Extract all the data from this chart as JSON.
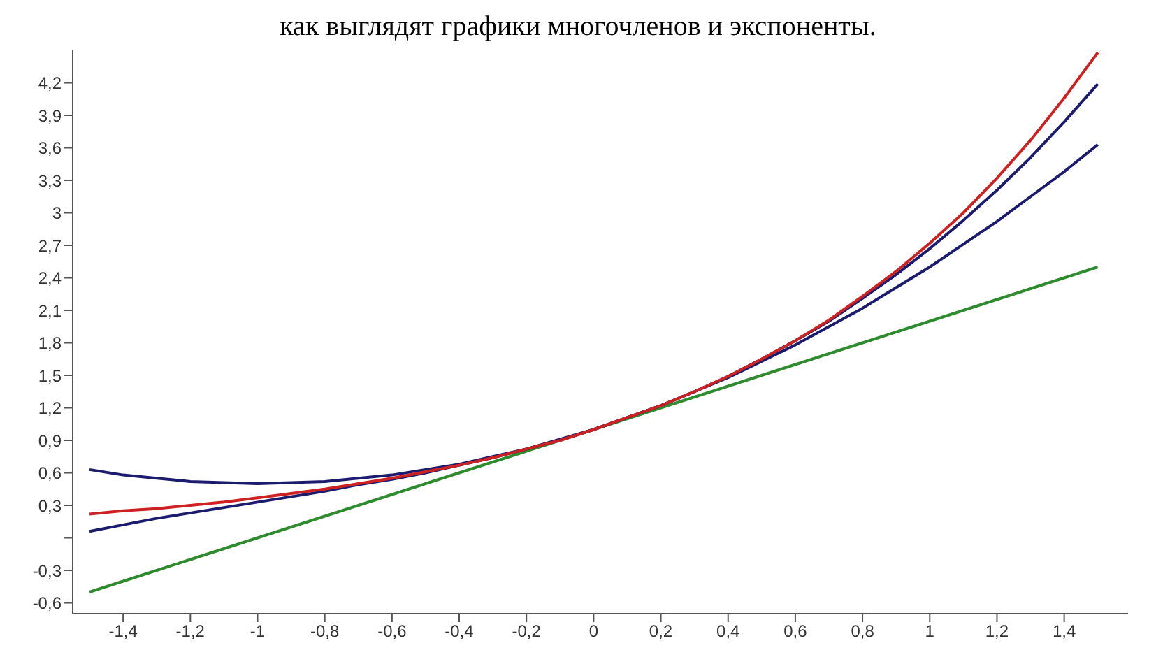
{
  "chart_data": {
    "type": "line",
    "title": "как выглядят графики многочленов и экспоненты.",
    "x": [
      -1.5,
      -1.4,
      -1.3,
      -1.2,
      -1.1,
      -1,
      -0.9,
      -0.8,
      -0.7,
      -0.6,
      -0.5,
      -0.4,
      -0.3,
      -0.2,
      -0.1,
      0,
      0.1,
      0.2,
      0.3,
      0.4,
      0.5,
      0.6,
      0.7,
      0.8,
      0.9,
      1,
      1.1,
      1.2,
      1.3,
      1.4,
      1.5
    ],
    "series": [
      {
        "color": "#2e8b2e",
        "values": [
          -0.5,
          -0.4,
          -0.3,
          -0.2,
          -0.1,
          0,
          0.1,
          0.2,
          0.3,
          0.4,
          0.5,
          0.6,
          0.7,
          0.8,
          0.9,
          1,
          1.1,
          1.2,
          1.3,
          1.4,
          1.5,
          1.6,
          1.7,
          1.8,
          1.9,
          2,
          2.1,
          2.2,
          2.3,
          2.4,
          2.5
        ]
      },
      {
        "color": "#1c1c6e",
        "values": [
          0.63,
          0.58,
          0.55,
          0.52,
          0.51,
          0.5,
          0.51,
          0.52,
          0.55,
          0.58,
          0.63,
          0.68,
          0.75,
          0.82,
          0.91,
          1,
          1.11,
          1.22,
          1.35,
          1.48,
          1.63,
          1.78,
          1.95,
          2.12,
          2.31,
          2.5,
          2.71,
          2.92,
          3.15,
          3.38,
          3.63
        ]
      },
      {
        "color": "#1c1c6e",
        "values": [
          0.06,
          0.12,
          0.18,
          0.23,
          0.28,
          0.33,
          0.38,
          0.43,
          0.49,
          0.54,
          0.6,
          0.67,
          0.74,
          0.82,
          0.9,
          1,
          1.11,
          1.22,
          1.35,
          1.49,
          1.65,
          1.82,
          2,
          2.21,
          2.43,
          2.67,
          2.93,
          3.21,
          3.51,
          3.84,
          4.19
        ]
      },
      {
        "color": "#cc2222",
        "values": [
          0.22,
          0.25,
          0.27,
          0.3,
          0.33,
          0.37,
          0.41,
          0.45,
          0.5,
          0.55,
          0.61,
          0.67,
          0.74,
          0.82,
          0.9,
          1,
          1.11,
          1.22,
          1.35,
          1.49,
          1.65,
          1.82,
          2.01,
          2.23,
          2.46,
          2.72,
          3,
          3.32,
          3.67,
          4.06,
          4.48
        ]
      }
    ],
    "xlim": [
      -1.55,
      1.59
    ],
    "xticks": [
      {
        "value": -1.4,
        "label": "-1,4"
      },
      {
        "value": -1.2,
        "label": "-1,2"
      },
      -1,
      {
        "value": -0.8,
        "label": "-0,8"
      },
      {
        "value": -0.6,
        "label": "-0,6"
      },
      {
        "value": -0.4,
        "label": "-0,4"
      },
      {
        "value": -0.2,
        "label": "-0,2"
      },
      0,
      {
        "value": 0.2,
        "label": "0,2"
      },
      {
        "value": 0.4,
        "label": "0,4"
      },
      {
        "value": 0.6,
        "label": "0,6"
      },
      {
        "value": 0.8,
        "label": "0,8"
      },
      1,
      {
        "value": 1.2,
        "label": "1,2"
      },
      {
        "value": 1.4,
        "label": "1,4"
      }
    ],
    "ylim": [
      -0.7,
      4.5
    ],
    "yticks": [
      {
        "value": -0.6,
        "label": "-0,6"
      },
      {
        "value": -0.3,
        "label": "-0,3"
      },
      {
        "value": 0,
        "label": null
      },
      {
        "value": 0.3,
        "label": "0,3"
      },
      {
        "value": 0.6,
        "label": "0,6"
      },
      {
        "value": 0.9,
        "label": "0,9"
      },
      {
        "value": 1.2,
        "label": "1,2"
      },
      {
        "value": 1.5,
        "label": "1,5"
      },
      {
        "value": 1.8,
        "label": "1,8"
      },
      {
        "value": 2.1,
        "label": "2,1"
      },
      {
        "value": 2.4,
        "label": "2,4"
      },
      {
        "value": 2.7,
        "label": "2,7"
      },
      3,
      {
        "value": 3.3,
        "label": "3,3"
      },
      {
        "value": 3.6,
        "label": "3,6"
      },
      {
        "value": 3.9,
        "label": "3,9"
      },
      {
        "value": 4.2,
        "label": "4,2"
      }
    ],
    "grid": false,
    "legend": false,
    "marker": "none",
    "line_style": "solid"
  }
}
